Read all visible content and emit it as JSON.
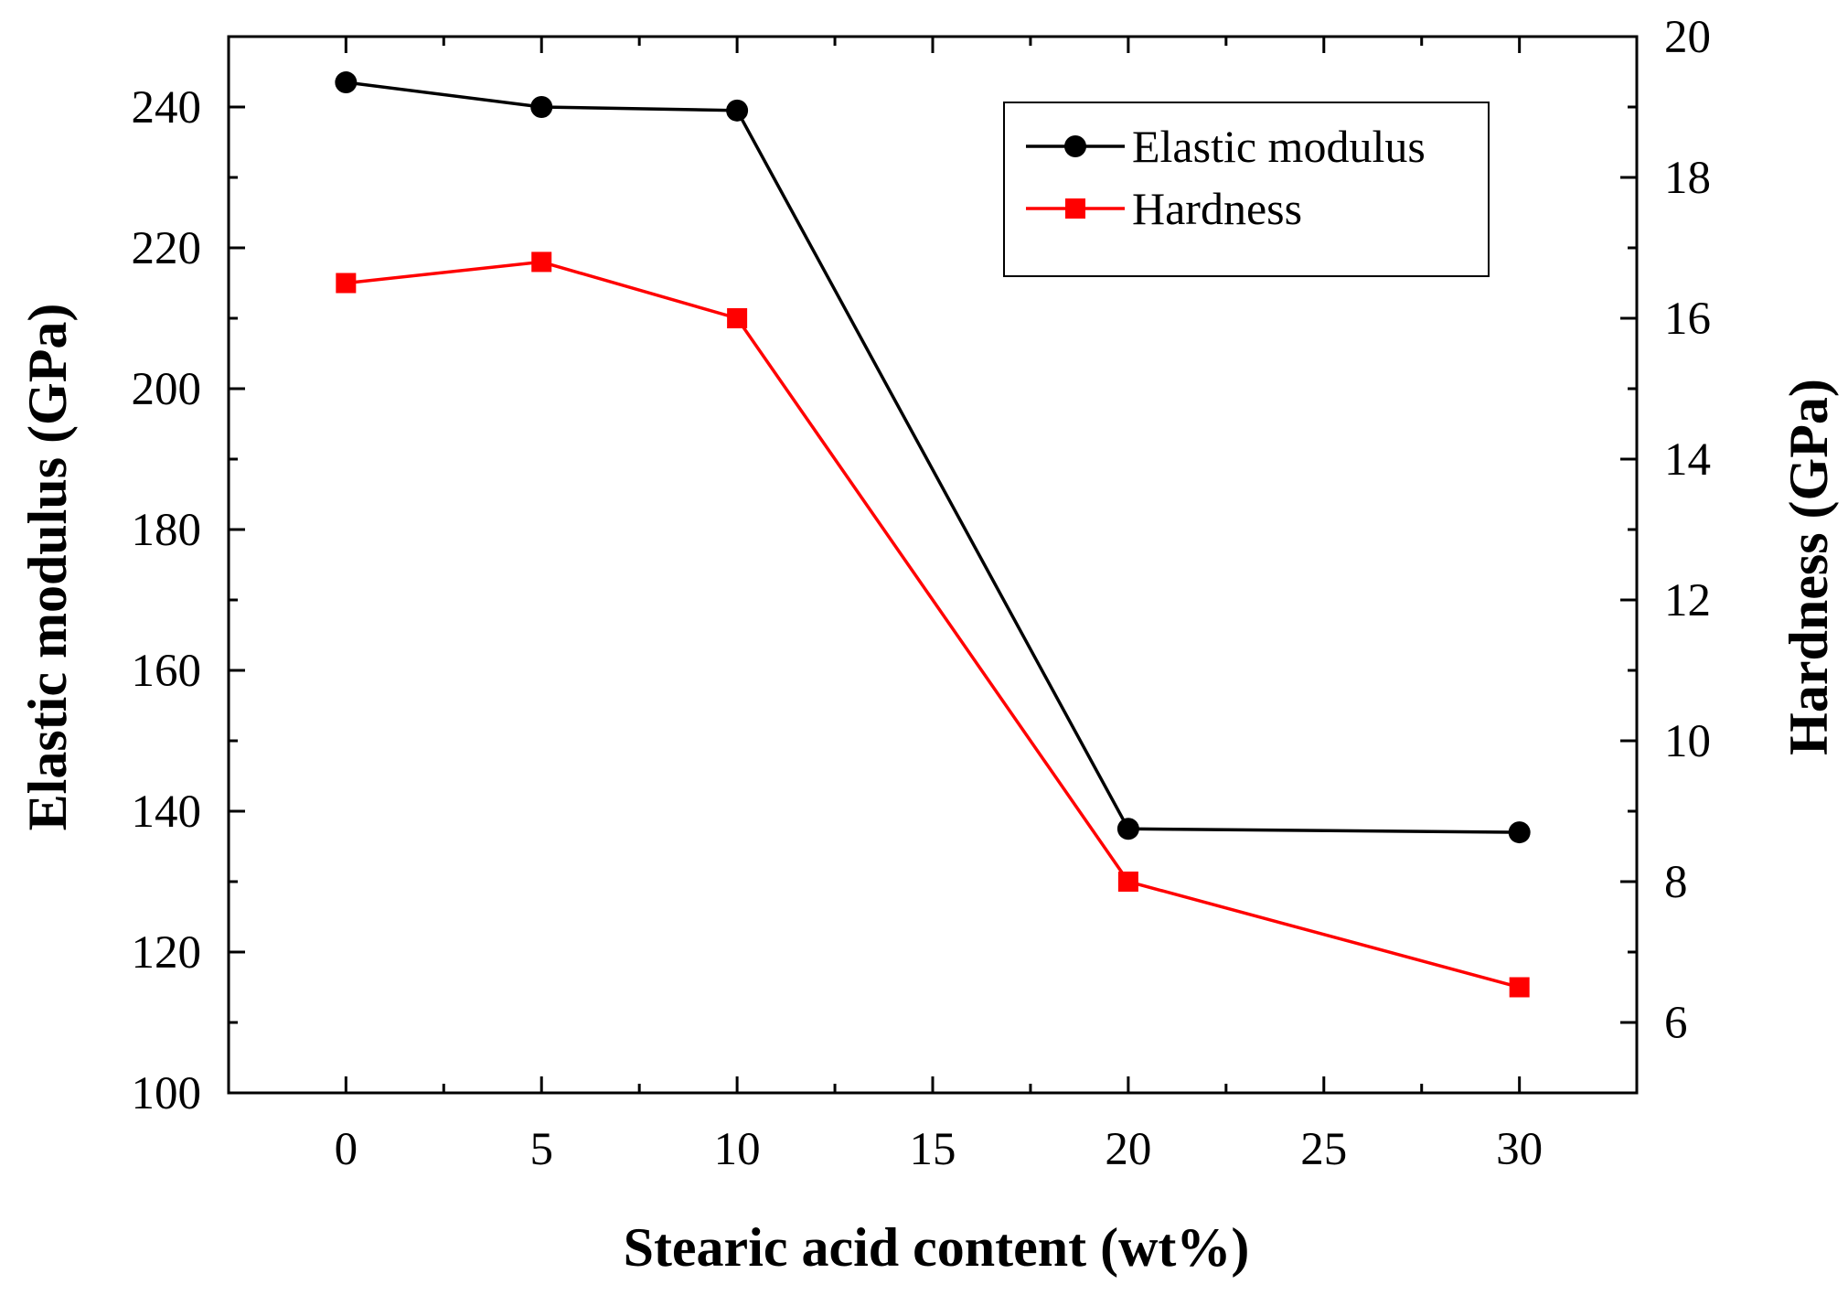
{
  "chart_data": {
    "type": "line",
    "xlabel": "Stearic acid content (wt%)",
    "ylabel_left": "Elastic modulus (GPa)",
    "ylabel_right": "Hardness (GPa)",
    "xlim": [
      -3,
      33
    ],
    "ylim_left": [
      100,
      250
    ],
    "ylim_right": [
      5,
      20
    ],
    "x_ticks": [
      0,
      5,
      10,
      15,
      20,
      25,
      30
    ],
    "y_left_ticks": [
      100,
      120,
      140,
      160,
      180,
      200,
      220,
      240
    ],
    "y_right_ticks": [
      6,
      8,
      10,
      12,
      14,
      16,
      18,
      20
    ],
    "grid": false,
    "legend_position": "top-right",
    "series": [
      {
        "name": "Elastic modulus",
        "axis": "left",
        "color": "#000000",
        "marker": "circle",
        "x": [
          0,
          5,
          10,
          20,
          30
        ],
        "y": [
          243.5,
          240,
          239.5,
          137.5,
          137
        ]
      },
      {
        "name": "Hardness",
        "axis": "right",
        "color": "#ff0000",
        "marker": "square",
        "x": [
          0,
          5,
          10,
          20,
          30
        ],
        "y": [
          16.5,
          16.8,
          16.0,
          8.0,
          6.5
        ]
      }
    ]
  }
}
